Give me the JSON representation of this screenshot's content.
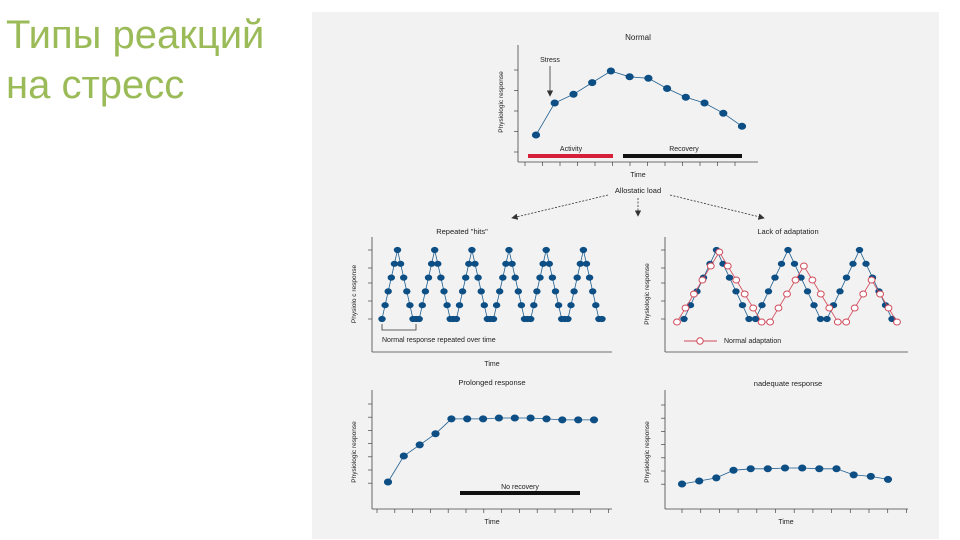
{
  "slide": {
    "title": "Типы реакций\n на стресс"
  },
  "figure": {
    "top_title": "Normal",
    "stress_label": "Stress",
    "activity_label": "Activity",
    "recovery_label": "Recovery",
    "time_label": "Time",
    "allostatic_label": "Allostatic load",
    "ylabel": "Physiologic response",
    "ylabel_alt": "Physiolo c response",
    "repeated_title": "Repeated \"hits\"",
    "repeated_note": "Normal response repeated over time",
    "lack_title": "Lack of adaptation",
    "normal_adaptation_label": "Normal adaptation",
    "prolonged_title": "Prolonged response",
    "no_recovery_label": "No recovery",
    "inadequate_title": "nadequate response",
    "colors": {
      "series": "#1f5f91",
      "marker": "#0d4f84",
      "activity_bar": "#d6203a",
      "recovery_bar": "#111111",
      "adaptation": "#d04a5a"
    }
  },
  "chart_data": [
    {
      "type": "line",
      "title": "Normal",
      "xlabel": "Time",
      "ylabel": "Physiologic response",
      "x": [
        1,
        2,
        3,
        4,
        5,
        6,
        7,
        8,
        9,
        10,
        11,
        12
      ],
      "values": [
        1,
        3.2,
        3.8,
        4.6,
        5.4,
        5,
        4.9,
        4.2,
        3.6,
        3.2,
        2.5,
        1.6
      ],
      "annotations": [
        "Stress",
        "Activity",
        "Recovery"
      ]
    },
    {
      "type": "line",
      "title": "Repeated \"hits\"",
      "xlabel": "Time",
      "ylabel": "Physiologic response",
      "note": "Normal response repeated over time",
      "x": [
        1,
        2,
        3,
        4,
        5,
        6,
        7,
        8,
        9,
        10,
        11,
        12,
        13,
        14,
        15,
        16,
        17,
        18,
        19,
        20,
        21,
        22,
        23,
        24,
        25,
        26,
        27,
        28,
        29,
        30,
        31,
        32,
        33,
        34,
        35,
        36,
        37,
        38,
        39,
        40,
        41,
        42,
        43,
        44,
        45,
        46,
        47,
        48,
        49,
        50,
        51,
        52,
        53,
        54,
        55,
        56,
        57,
        58,
        59,
        60,
        61,
        62,
        63,
        64,
        65,
        66,
        67,
        68,
        69,
        70,
        71,
        72
      ],
      "values": [
        0,
        1,
        2,
        3,
        4,
        5,
        4,
        3,
        2,
        1,
        0,
        0,
        0,
        1,
        2,
        3,
        4,
        5,
        4,
        3,
        2,
        1,
        0,
        0,
        0,
        1,
        2,
        3,
        4,
        5,
        4,
        3,
        2,
        1,
        0,
        0,
        0,
        1,
        2,
        3,
        4,
        5,
        4,
        3,
        2,
        1,
        0,
        0,
        0,
        1,
        2,
        3,
        4,
        5,
        4,
        3,
        2,
        1,
        0,
        0,
        0,
        1,
        2,
        3,
        4,
        5,
        4,
        3,
        2,
        1,
        0,
        0
      ]
    },
    {
      "type": "line",
      "title": "Lack of adaptation",
      "xlabel": "",
      "ylabel": "Physiologic response",
      "series": [
        {
          "name": "Normal adaptation",
          "values": [
            0,
            1,
            2,
            3,
            4,
            5,
            4,
            3,
            2,
            1,
            0,
            0,
            1,
            2,
            3,
            4,
            3,
            2,
            1,
            0,
            0,
            1,
            2,
            3,
            2,
            1,
            0
          ]
        },
        {
          "name": "",
          "values": [
            0,
            1,
            2,
            3,
            4,
            5,
            4,
            3,
            2,
            1,
            0,
            0,
            1,
            2,
            3,
            4,
            5,
            4,
            3,
            2,
            1,
            0,
            0,
            1,
            2,
            3,
            4,
            5,
            4,
            3,
            2,
            1,
            0
          ]
        }
      ]
    },
    {
      "type": "line",
      "title": "Prolonged response",
      "xlabel": "Time",
      "ylabel": "Physiologic response",
      "x": [
        1,
        2,
        3,
        4,
        5,
        6,
        7,
        8,
        9,
        10,
        11,
        12,
        13,
        14
      ],
      "values": [
        0,
        1.4,
        2,
        2.6,
        3.4,
        3.4,
        3.4,
        3.45,
        3.45,
        3.45,
        3.4,
        3.35,
        3.35,
        3.35
      ],
      "annotations": [
        "No recovery"
      ]
    },
    {
      "type": "line",
      "title": "nadequate response",
      "xlabel": "Time",
      "ylabel": "Physiologic response",
      "x": [
        1,
        2,
        3,
        4,
        5,
        6,
        7,
        8,
        9,
        10,
        11,
        12,
        13
      ],
      "values": [
        0,
        0.2,
        0.4,
        0.9,
        1,
        1,
        1.05,
        1.05,
        1,
        1,
        0.6,
        0.5,
        0.3
      ]
    }
  ]
}
